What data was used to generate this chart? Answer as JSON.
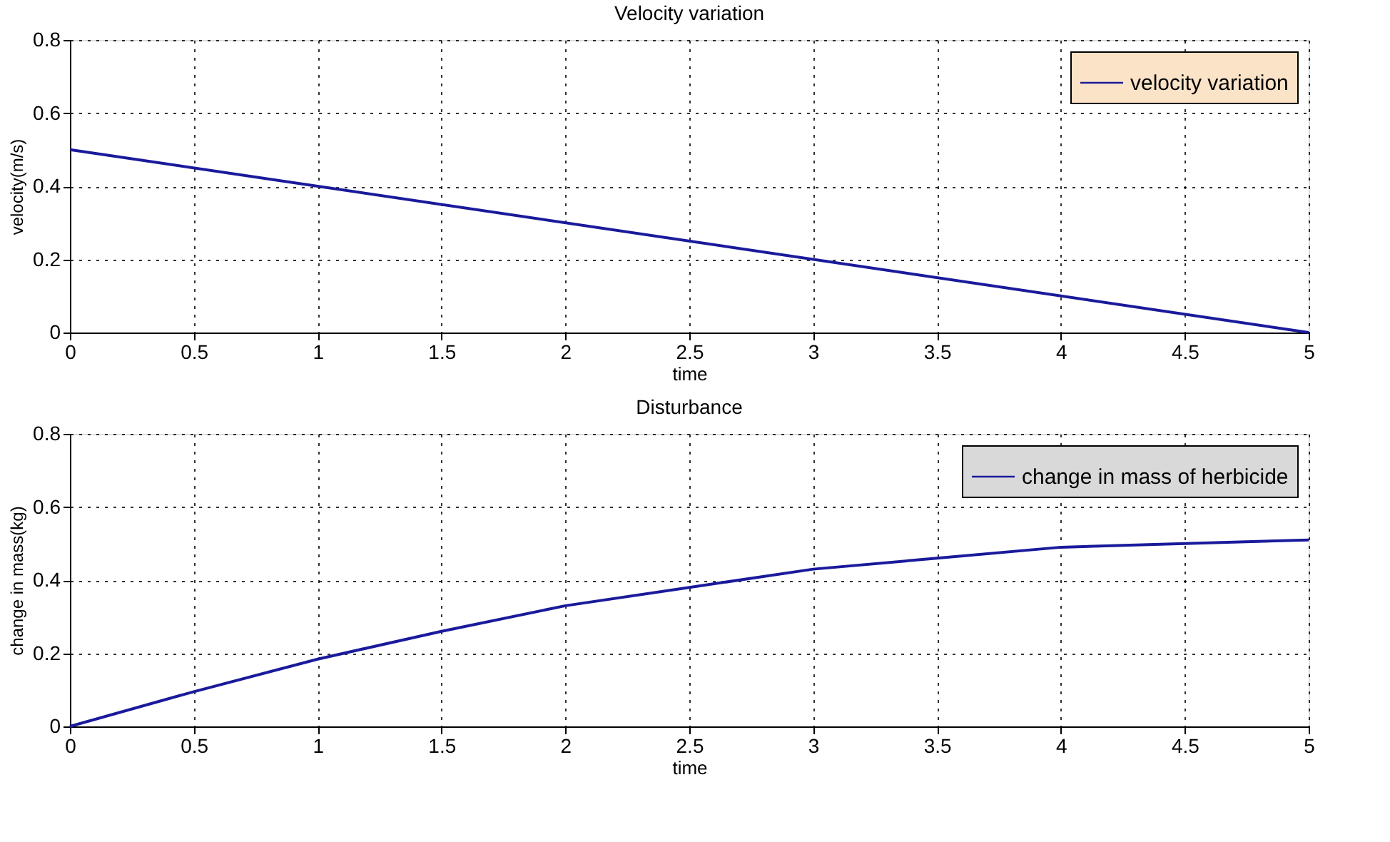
{
  "chart_data": [
    {
      "type": "line",
      "title": "Velocity variation",
      "xlabel": "time",
      "ylabel": "velocity(m/s)",
      "x": [
        0,
        5
      ],
      "series": [
        {
          "name": "velocity variation",
          "color": "#1a1a9c",
          "values": [
            0.5,
            0
          ]
        }
      ],
      "xlim": [
        0,
        5
      ],
      "xticks": [
        0,
        0.5,
        1,
        1.5,
        2,
        2.5,
        3,
        3.5,
        4,
        4.5,
        5
      ],
      "ylim": [
        0,
        0.8
      ],
      "yticks": [
        0,
        0.2,
        0.4,
        0.6,
        0.8
      ],
      "grid": true,
      "legend": "top right",
      "marker": "none"
    },
    {
      "type": "line",
      "title": "Disturbance",
      "xlabel": "time",
      "ylabel": "change in mass(kg)",
      "x": [
        0,
        0.5,
        1,
        1.5,
        2,
        2.5,
        3,
        3.5,
        4,
        4.5,
        5
      ],
      "series": [
        {
          "name": "change in mass of herbicide",
          "color": "#1a1a9c",
          "values": [
            0,
            0.095,
            0.184,
            0.26,
            0.33,
            0.38,
            0.43,
            0.46,
            0.49,
            0.5,
            0.51
          ]
        }
      ],
      "xlim": [
        0,
        5
      ],
      "xticks": [
        0,
        0.5,
        1,
        1.5,
        2,
        2.5,
        3,
        3.5,
        4,
        4.5,
        5
      ],
      "ylim": [
        0,
        0.8
      ],
      "yticks": [
        0,
        0.2,
        0.4,
        0.6,
        0.8
      ],
      "grid": true,
      "legend": "top right",
      "marker": "none"
    }
  ]
}
